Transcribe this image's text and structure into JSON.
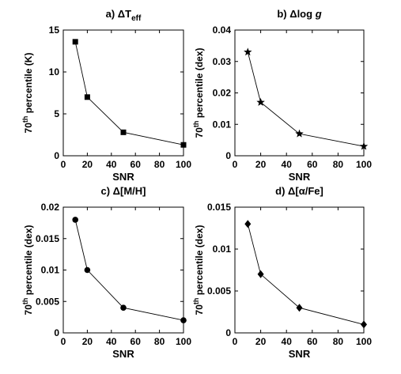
{
  "chart_data": [
    {
      "type": "line",
      "title_prefix": "a)",
      "title_symbol": "ΔT",
      "title_subscript": "eff",
      "title_italic": "",
      "xlabel": "SNR",
      "ylabel_main": "70",
      "ylabel_sup": "th",
      "ylabel_rest": " percentile (K)",
      "xlim": [
        0,
        100
      ],
      "ylim": [
        0,
        15
      ],
      "xticks": [
        0,
        20,
        40,
        60,
        80,
        100
      ],
      "yticks": [
        0,
        5,
        10,
        15
      ],
      "ytick_labels": [
        "0",
        "5",
        "10",
        "15"
      ],
      "marker": "square",
      "x": [
        10,
        20,
        50,
        100
      ],
      "y": [
        13.6,
        7.0,
        2.8,
        1.3
      ]
    },
    {
      "type": "line",
      "title_prefix": "b)",
      "title_symbol": "Δlog",
      "title_subscript": "",
      "title_italic": "g",
      "xlabel": "SNR",
      "ylabel_main": "70",
      "ylabel_sup": "th",
      "ylabel_rest": " percentile (dex)",
      "xlim": [
        0,
        100
      ],
      "ylim": [
        0,
        0.04
      ],
      "xticks": [
        0,
        20,
        40,
        60,
        80,
        100
      ],
      "yticks": [
        0,
        0.01,
        0.02,
        0.03,
        0.04
      ],
      "ytick_labels": [
        "0",
        "0.01",
        "0.02",
        "0.03",
        "0.04"
      ],
      "marker": "star",
      "x": [
        10,
        20,
        50,
        100
      ],
      "y": [
        0.033,
        0.017,
        0.007,
        0.003
      ]
    },
    {
      "type": "line",
      "title_prefix": "c)",
      "title_symbol": "Δ[M/H]",
      "title_subscript": "",
      "title_italic": "",
      "xlabel": "SNR",
      "ylabel_main": "70",
      "ylabel_sup": "th",
      "ylabel_rest": " percentile (dex)",
      "xlim": [
        0,
        100
      ],
      "ylim": [
        0,
        0.02
      ],
      "xticks": [
        0,
        20,
        40,
        60,
        80,
        100
      ],
      "yticks": [
        0,
        0.005,
        0.01,
        0.015,
        0.02
      ],
      "ytick_labels": [
        "0",
        "0.005",
        "0.01",
        "0.015",
        "0.02"
      ],
      "marker": "circle",
      "x": [
        10,
        20,
        50,
        100
      ],
      "y": [
        0.018,
        0.01,
        0.004,
        0.002
      ]
    },
    {
      "type": "line",
      "title_prefix": "d)",
      "title_symbol": "Δ[α/Fe]",
      "title_subscript": "",
      "title_italic": "",
      "xlabel": "SNR",
      "ylabel_main": "70",
      "ylabel_sup": "th",
      "ylabel_rest": " percentile (dex)",
      "xlim": [
        0,
        100
      ],
      "ylim": [
        0,
        0.015
      ],
      "xticks": [
        0,
        20,
        40,
        60,
        80,
        100
      ],
      "yticks": [
        0,
        0.005,
        0.01,
        0.015
      ],
      "ytick_labels": [
        "0",
        "0.005",
        "0.01",
        "0.015"
      ],
      "marker": "diamond",
      "x": [
        10,
        20,
        50,
        100
      ],
      "y": [
        0.013,
        0.007,
        0.003,
        0.001
      ]
    }
  ]
}
